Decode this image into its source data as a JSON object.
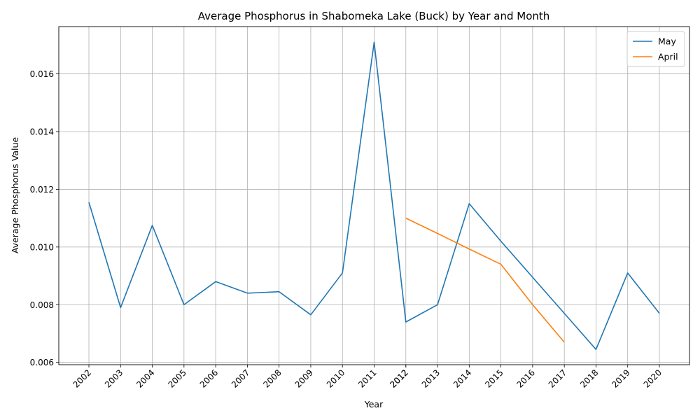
{
  "chart_data": {
    "type": "line",
    "title": "Average Phosphorus in Shabomeka Lake (Buck) by Year and Month",
    "xlabel": "Year",
    "ylabel": "Average Phosphorus Value",
    "x_tick_labels": [
      "2002",
      "2003",
      "2004",
      "2005",
      "2006",
      "2007",
      "2008",
      "2009",
      "2010",
      "2011",
      "2012",
      "2012",
      "2013",
      "2014",
      "2015",
      "2016",
      "2017",
      "2018",
      "2019",
      "2020"
    ],
    "y_ticks": [
      0.006,
      0.008,
      0.01,
      0.012,
      0.014,
      0.016
    ],
    "y_tick_labels": [
      "0.006",
      "0.008",
      "0.010",
      "0.012",
      "0.014",
      "0.016"
    ],
    "ylim": [
      0.00592,
      0.01764
    ],
    "grid": true,
    "legend_position": "top-right",
    "series": [
      {
        "name": "May",
        "color": "#1f77b4",
        "x": [
          2002,
          2003,
          2004,
          2005,
          2006,
          2007,
          2008,
          2009,
          2010,
          2011,
          2012,
          2013,
          2014,
          2015,
          2016,
          2017,
          2018,
          2019,
          2020
        ],
        "values": [
          0.01155,
          0.0079,
          0.01075,
          0.008,
          0.0088,
          0.0084,
          0.00845,
          0.00765,
          0.0091,
          0.0171,
          0.0074,
          0.008,
          0.0115,
          0.0102,
          0.00895,
          0.0077,
          0.00645,
          0.0091,
          0.0077
        ]
      },
      {
        "name": "April",
        "color": "#ff7f0e",
        "x": [
          2012,
          2013,
          2014,
          2015,
          2016,
          2017
        ],
        "values": [
          0.011,
          0.01047,
          0.00993,
          0.0094,
          0.008,
          0.0067
        ]
      }
    ]
  }
}
